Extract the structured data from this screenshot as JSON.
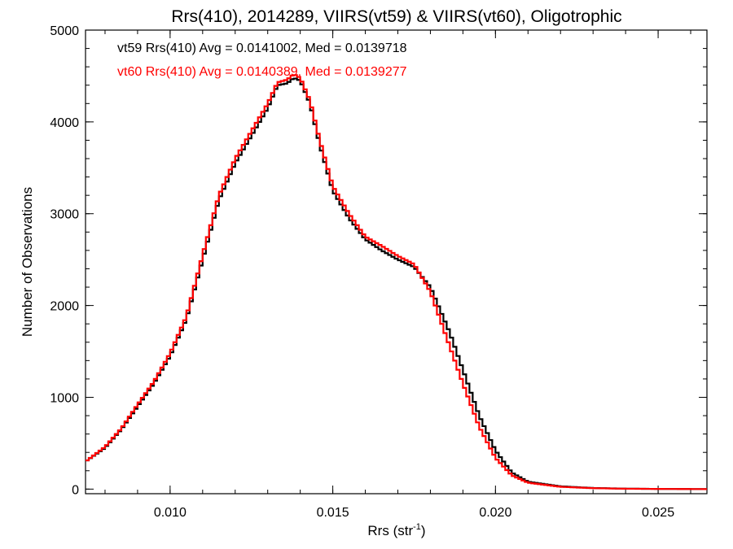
{
  "chart_data": {
    "type": "line",
    "title": "Rrs(410), 2014289, VIIRS(vt59) & VIIRS(vt60), Oligotrophic",
    "xlabel": "Rrs (str",
    "xlabel_superscript": "-1",
    "xlabel_suffix": ")",
    "ylabel": "Number of Observations",
    "xlim": [
      0.0074,
      0.0265
    ],
    "ylim": [
      -50,
      5000
    ],
    "x_ticks": [
      {
        "value": 0.01,
        "label": "0.010"
      },
      {
        "value": 0.015,
        "label": "0.015"
      },
      {
        "value": 0.02,
        "label": "0.020"
      },
      {
        "value": 0.025,
        "label": "0.025"
      }
    ],
    "y_ticks": [
      {
        "value": 0,
        "label": "0"
      },
      {
        "value": 1000,
        "label": "1000"
      },
      {
        "value": 2000,
        "label": "2000"
      },
      {
        "value": 3000,
        "label": "3000"
      },
      {
        "value": 4000,
        "label": "4000"
      },
      {
        "value": 5000,
        "label": "5000"
      }
    ],
    "x_minor_step": 0.001,
    "y_minor_step": 200,
    "bin_width": 0.0001,
    "grid": false,
    "legend_position": "top-left",
    "series": [
      {
        "legend": "vt59 Rrs(410) Avg = 0.0141002, Med = 0.0139718",
        "color": "#000000",
        "x": [
          0.0074,
          0.008,
          0.0085,
          0.009,
          0.0095,
          0.01,
          0.0105,
          0.011,
          0.0115,
          0.012,
          0.0125,
          0.013,
          0.0133,
          0.0136,
          0.0138,
          0.014,
          0.0143,
          0.0146,
          0.015,
          0.0155,
          0.016,
          0.0165,
          0.017,
          0.0175,
          0.018,
          0.0183,
          0.0186,
          0.019,
          0.0195,
          0.02,
          0.0205,
          0.021,
          0.022,
          0.023,
          0.024,
          0.025,
          0.0265
        ],
        "y": [
          300,
          450,
          650,
          900,
          1150,
          1450,
          1850,
          2500,
          3150,
          3550,
          3850,
          4150,
          4400,
          4420,
          4480,
          4450,
          4200,
          3750,
          3250,
          2950,
          2720,
          2600,
          2500,
          2420,
          2200,
          1950,
          1700,
          1300,
          800,
          420,
          180,
          80,
          30,
          12,
          5,
          2,
          0
        ]
      },
      {
        "legend": "vt60 Rrs(410) Avg = 0.0140389, Med = 0.0139277",
        "color": "#ff0000",
        "x": [
          0.0074,
          0.008,
          0.0085,
          0.009,
          0.0095,
          0.01,
          0.0105,
          0.011,
          0.0115,
          0.012,
          0.0125,
          0.013,
          0.0133,
          0.0136,
          0.0138,
          0.014,
          0.0143,
          0.0146,
          0.015,
          0.0155,
          0.016,
          0.0165,
          0.017,
          0.0175,
          0.018,
          0.0183,
          0.0186,
          0.019,
          0.0195,
          0.02,
          0.0205,
          0.021,
          0.022,
          0.023,
          0.024,
          0.025,
          0.0265
        ],
        "y": [
          300,
          460,
          660,
          920,
          1170,
          1480,
          1880,
          2550,
          3200,
          3600,
          3900,
          4200,
          4430,
          4460,
          4520,
          4480,
          4230,
          3800,
          3300,
          3000,
          2750,
          2650,
          2540,
          2450,
          2150,
          1850,
          1550,
          1150,
          680,
          340,
          150,
          70,
          25,
          10,
          4,
          2,
          0
        ]
      }
    ]
  }
}
